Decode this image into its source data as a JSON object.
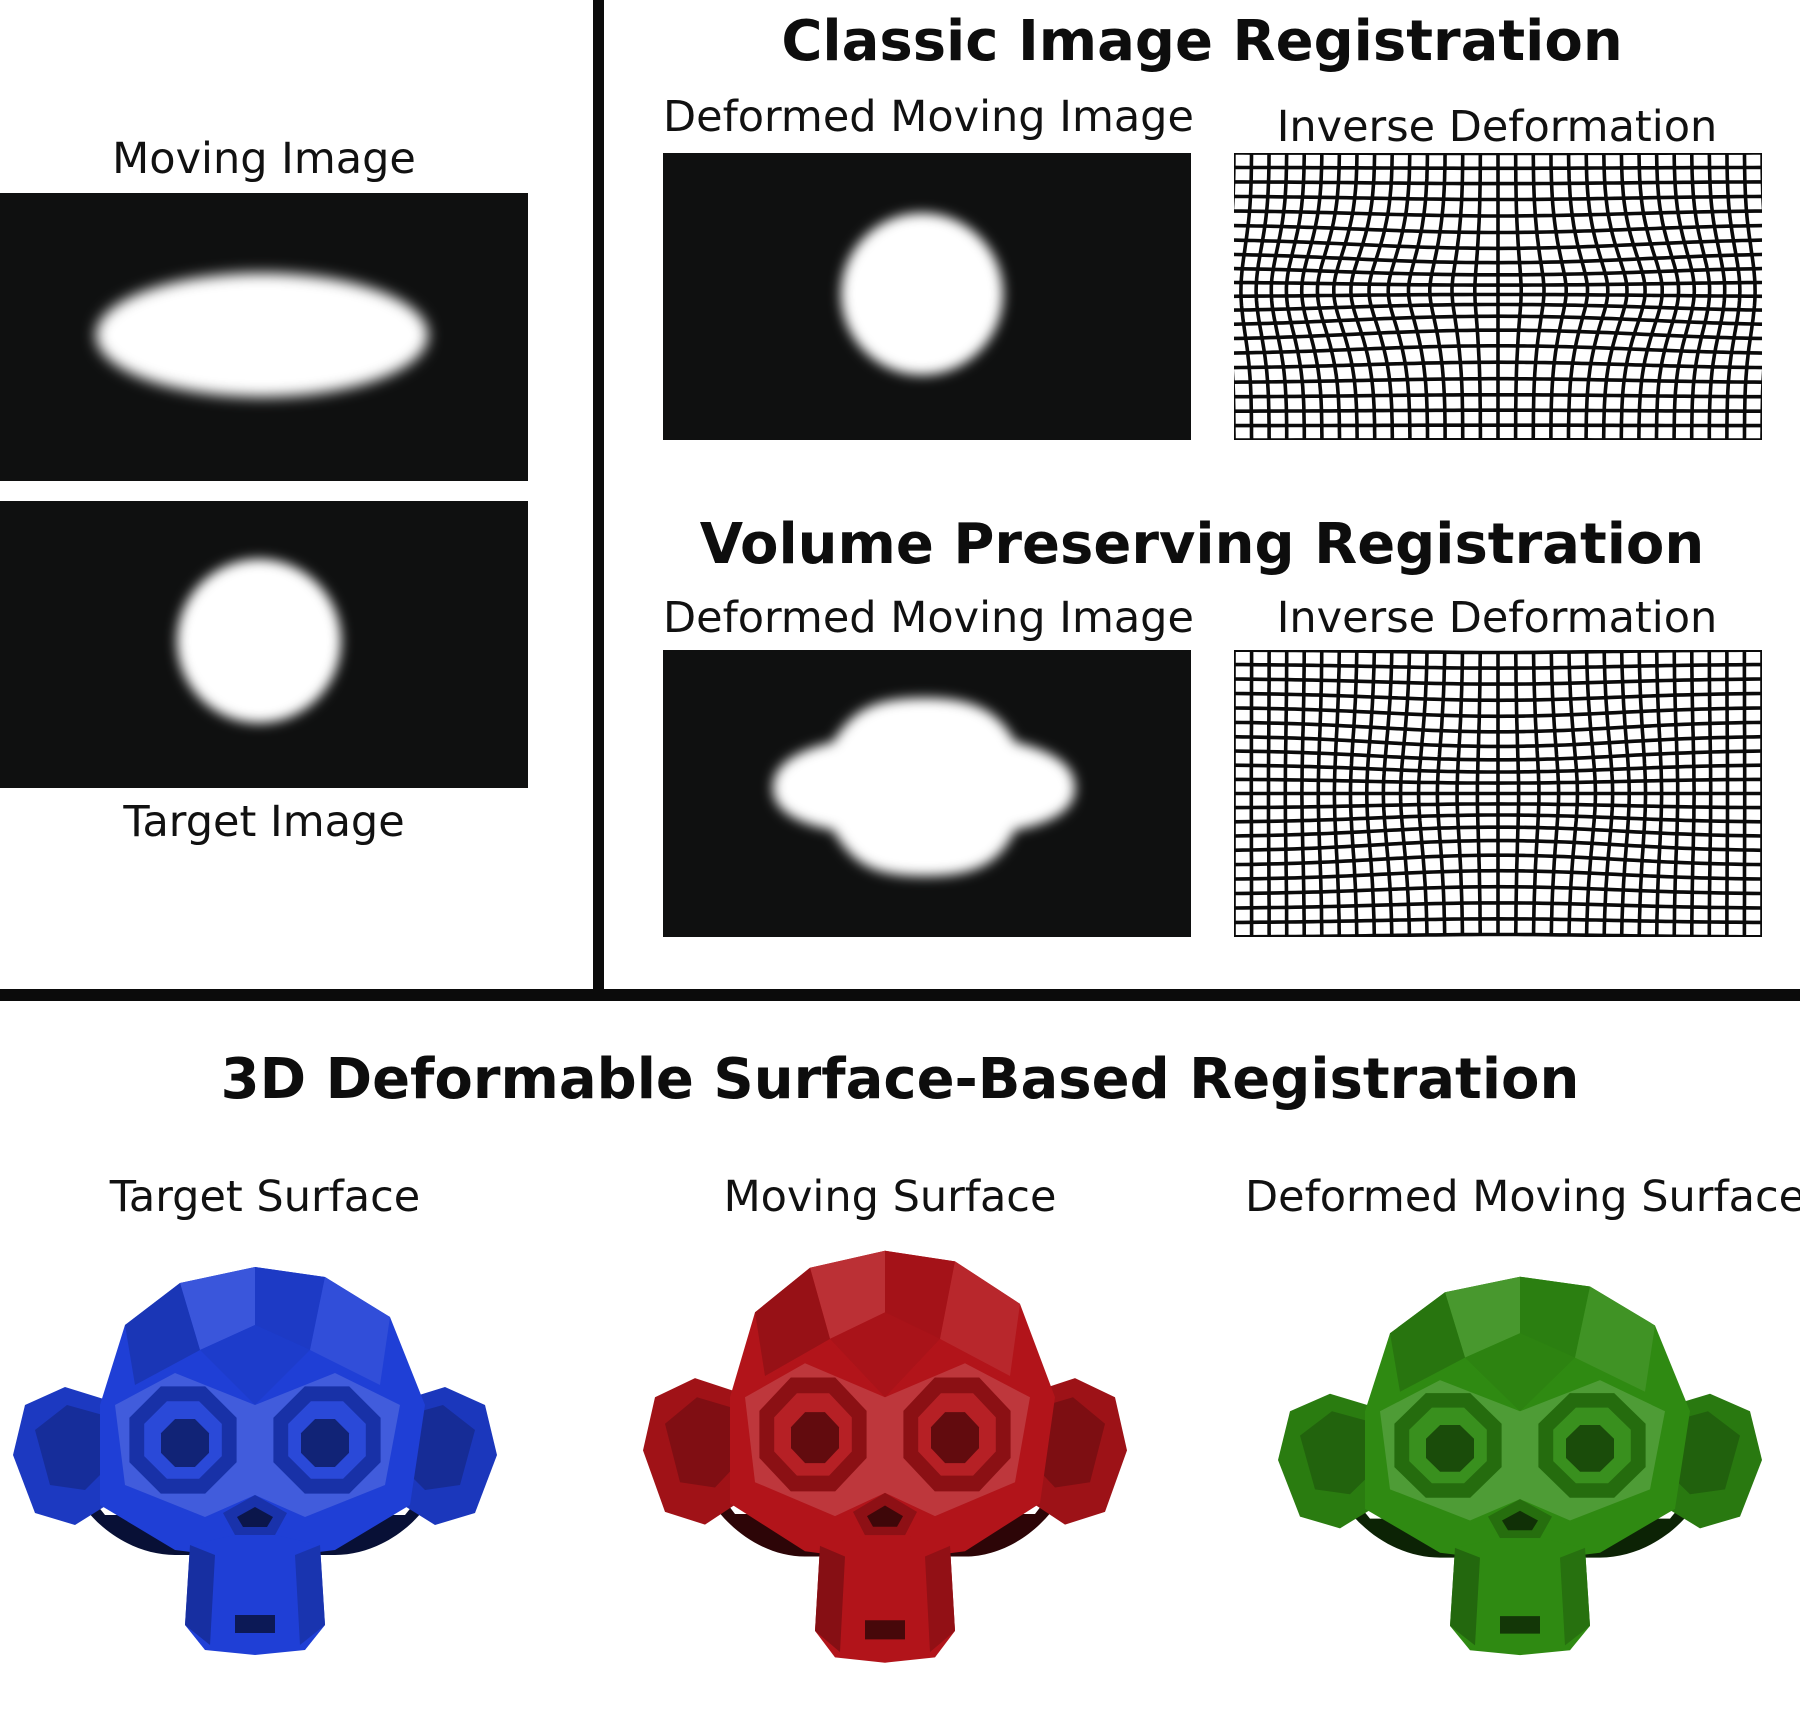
{
  "left": {
    "moving_label": "Moving Image",
    "target_label": "Target Image"
  },
  "classic": {
    "title": "Classic Image Registration",
    "deformed_label": "Deformed Moving Image",
    "inverse_label": "Inverse Deformation"
  },
  "volume": {
    "title": "Volume Preserving Registration",
    "deformed_label": "Deformed Moving Image",
    "inverse_label": "Inverse Deformation"
  },
  "surface": {
    "title": "3D Deformable Surface-Based Registration",
    "target_label": "Target Surface",
    "moving_label": "Moving Surface",
    "deformed_label": "Deformed Moving Surface"
  },
  "colors": {
    "target_surface": "#1f3fd6",
    "moving_surface": "#b2141a",
    "deformed_surface": "#2f8a12",
    "image_background": "#0f1010",
    "blob": "#ffffff"
  }
}
